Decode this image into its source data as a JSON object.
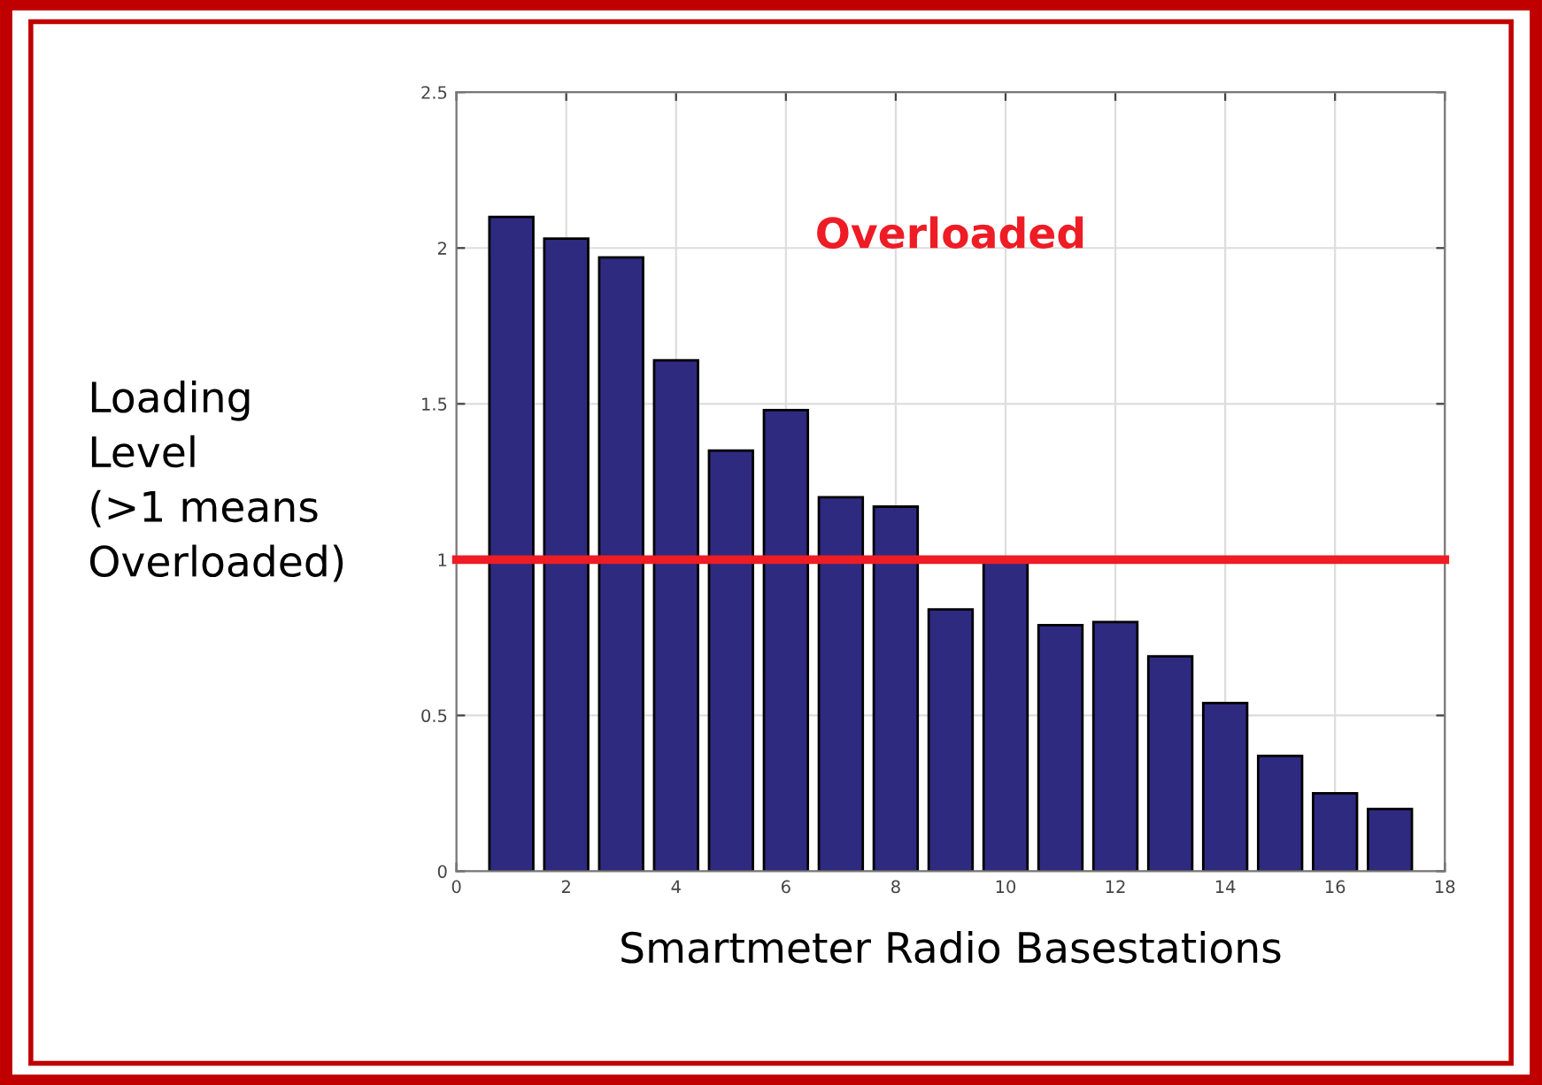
{
  "chart_data": {
    "type": "bar",
    "xlabel": "Smartmeter Radio Basestations",
    "ylabel": "Loading\nLevel\n(>1 means\nOverloaded)",
    "x": [
      1,
      2,
      3,
      4,
      5,
      6,
      7,
      8,
      9,
      10,
      11,
      12,
      13,
      14,
      15,
      16,
      17
    ],
    "series": [
      {
        "color": "#2e2a80",
        "values": [
          2.1,
          2.03,
          1.97,
          1.64,
          1.35,
          1.48,
          1.2,
          1.17,
          0.84,
          1.0,
          0.79,
          0.8,
          0.69,
          0.54,
          0.37,
          0.25,
          0.2
        ]
      }
    ],
    "xlim": [
      0,
      18
    ],
    "xticks": [
      0,
      2,
      4,
      6,
      8,
      10,
      12,
      14,
      16,
      18
    ],
    "ylim": [
      0,
      2.5
    ],
    "yticks": [
      0,
      0.5,
      1,
      1.5,
      2,
      2.5
    ],
    "ref_lines": [
      {
        "axis": "y",
        "value": 1,
        "color": "#ee1c25"
      }
    ],
    "annotations": [
      "Overloaded"
    ],
    "grid": true
  }
}
